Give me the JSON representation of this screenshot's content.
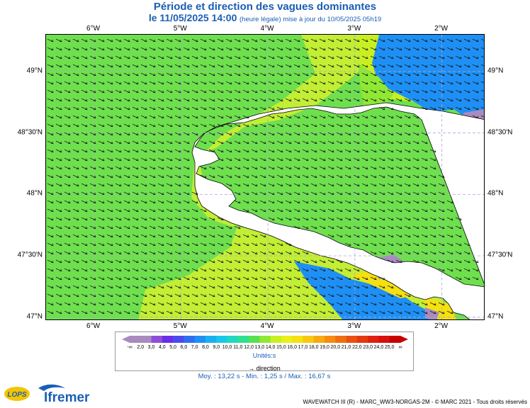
{
  "title": "Période et direction des vagues dominantes",
  "subtitle_date": "le 11/05/2025 14:00",
  "subtitle_note": "(heure légale) mise à jour du 10/05/2025 05h19",
  "map": {
    "lon_ticks": [
      {
        "lon": -6,
        "label": "6°W"
      },
      {
        "lon": -5,
        "label": "5°W"
      },
      {
        "lon": -4,
        "label": "4°W"
      },
      {
        "lon": -3,
        "label": "3°W"
      },
      {
        "lon": -2,
        "label": "2°W"
      }
    ],
    "lat_ticks": [
      {
        "lat": 49.0,
        "label": "49°N"
      },
      {
        "lat": 48.5,
        "label": "48°30'N"
      },
      {
        "lat": 48.0,
        "label": "48°N"
      },
      {
        "lat": 47.5,
        "label": "47°30'N"
      },
      {
        "lat": 47.0,
        "label": "47°N"
      }
    ],
    "lon_range": [
      -6.55,
      -1.5
    ],
    "lat_range": [
      46.97,
      49.3
    ],
    "colors": {
      "land": "#ffffff",
      "grid": "#a8a8d8",
      "arrow": "#1a1a1a"
    }
  },
  "legend": {
    "labels": [
      "-∞",
      "2,0",
      "3,0",
      "4,0",
      "5,0",
      "6,0",
      "7,0",
      "8,0",
      "9,0",
      "10,0",
      "11,0",
      "12,0",
      "13,0",
      "14,0",
      "15,0",
      "16,0",
      "17,0",
      "18,0",
      "19,0",
      "20,0",
      "21,0",
      "22,0",
      "23,0",
      "24,0",
      "25,0",
      "∞"
    ],
    "colors": [
      "#a98bbf",
      "#a98bbf",
      "#8e4fd8",
      "#6a2ee8",
      "#4a4aee",
      "#2f6ef0",
      "#1e90f5",
      "#1ab0f0",
      "#18c8e8",
      "#20d8c0",
      "#2ee090",
      "#58e050",
      "#8ee834",
      "#c8f020",
      "#e8f018",
      "#f5e010",
      "#f8c810",
      "#f8a810",
      "#f58c10",
      "#f06e10",
      "#ea5010",
      "#e43810",
      "#de2010",
      "#d81010",
      "#c80000"
    ],
    "units": "Unités:s",
    "direction_label": "direction"
  },
  "stats": "Moy. : 13,22 s   -   Min. : 1,25 s / Max. : 16,67 s",
  "logos": {
    "lops": "LOPS",
    "ifremer": "Ifremer"
  },
  "copyright": "WAVEWATCH III (R) - MARC_WW3-NORGAS-2M - © MARC 2021 - Tous droits réservés"
}
